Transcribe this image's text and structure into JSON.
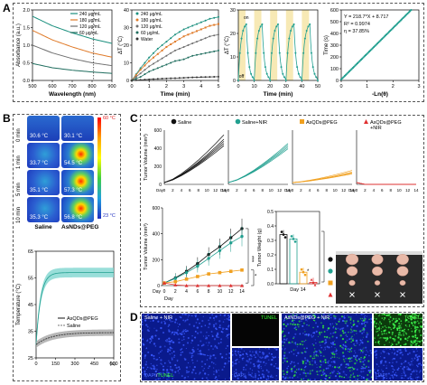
{
  "panels": {
    "A": "A",
    "B": "B",
    "C": "C",
    "D": "D"
  },
  "colors": {
    "c240": "#1a8f7e",
    "c180": "#e07b2a",
    "c120": "#6e6e6e",
    "c60": "#1f6d5e",
    "water": "#333333",
    "teal": "#22a090",
    "orange": "#f0a020",
    "red": "#e03030",
    "black": "#111111"
  },
  "chart_data": [
    {
      "id": "A1",
      "type": "line",
      "xlabel": "Wavelength (nm)",
      "ylabel": "Absorbance (a.u.)",
      "xlim": [
        500,
        900
      ],
      "ylim": [
        0,
        2.0
      ],
      "xticks": [
        "500",
        "600",
        "700",
        "800",
        "900"
      ],
      "yticks": [
        "0.0",
        "0.5",
        "1.0",
        "1.5",
        "2.0"
      ],
      "legend": [
        "240 μg/mL",
        "180 μg/mL",
        "120 μg/mL",
        "60 μg/mL"
      ],
      "dashed_x": 808,
      "series": [
        {
          "name": "240 μg/mL",
          "x": [
            500,
            600,
            700,
            800,
            900
          ],
          "y": [
            1.82,
            1.55,
            1.35,
            1.18,
            1.05
          ]
        },
        {
          "name": "180 μg/mL",
          "x": [
            500,
            600,
            700,
            800,
            900
          ],
          "y": [
            1.42,
            1.15,
            0.95,
            0.78,
            0.66
          ]
        },
        {
          "name": "120 μg/mL",
          "x": [
            500,
            600,
            700,
            800,
            900
          ],
          "y": [
            1.0,
            0.78,
            0.62,
            0.5,
            0.42
          ]
        },
        {
          "name": "60 μg/mL",
          "x": [
            500,
            600,
            700,
            800,
            900
          ],
          "y": [
            0.48,
            0.36,
            0.29,
            0.24,
            0.2
          ]
        }
      ]
    },
    {
      "id": "A2",
      "type": "line",
      "xlabel": "Time (min)",
      "ylabel": "ΔT (°C)",
      "xlim": [
        0,
        5
      ],
      "ylim": [
        0,
        40
      ],
      "xticks": [
        "0",
        "1",
        "2",
        "3",
        "4",
        "5"
      ],
      "yticks": [
        "0",
        "10",
        "20",
        "30",
        "40"
      ],
      "legend": [
        "240 μg/mL",
        "180 μg/mL",
        "120 μg/mL",
        "60 μg/mL",
        "Water"
      ],
      "series": [
        {
          "name": "240 μg/mL",
          "x": [
            0,
            0.5,
            1,
            1.5,
            2,
            2.5,
            3,
            3.5,
            4,
            4.5,
            5
          ],
          "y": [
            0,
            7,
            13,
            18,
            22,
            26,
            29,
            31,
            33,
            35,
            36
          ]
        },
        {
          "name": "180 μg/mL",
          "x": [
            0,
            0.5,
            1,
            1.5,
            2,
            2.5,
            3,
            3.5,
            4,
            4.5,
            5
          ],
          "y": [
            0,
            6,
            11,
            15,
            19,
            22,
            25,
            27,
            29,
            31,
            32
          ]
        },
        {
          "name": "120 μg/mL",
          "x": [
            0,
            0.5,
            1,
            1.5,
            2,
            2.5,
            3,
            3.5,
            4,
            4.5,
            5
          ],
          "y": [
            0,
            4,
            8,
            11,
            14,
            17,
            19,
            21,
            23,
            25,
            26
          ]
        },
        {
          "name": "60 μg/mL",
          "x": [
            0,
            0.5,
            1,
            1.5,
            2,
            2.5,
            3,
            3.5,
            4,
            4.5,
            5
          ],
          "y": [
            0,
            2,
            5,
            7,
            9,
            11,
            12,
            14,
            15,
            16,
            17
          ]
        },
        {
          "name": "Water",
          "x": [
            0,
            0.5,
            1,
            1.5,
            2,
            2.5,
            3,
            3.5,
            4,
            4.5,
            5
          ],
          "y": [
            0,
            0.3,
            0.6,
            0.9,
            1.1,
            1.3,
            1.5,
            1.7,
            1.9,
            2,
            2.1
          ]
        }
      ]
    },
    {
      "id": "A3",
      "type": "line",
      "xlabel": "Time (min)",
      "ylabel": "ΔT (°C)",
      "xlim": [
        0,
        50
      ],
      "ylim": [
        0,
        30
      ],
      "xticks": [
        "0",
        "10",
        "20",
        "30",
        "40",
        "50"
      ],
      "yticks": [
        "0",
        "10",
        "20",
        "30"
      ],
      "annotations": [
        "on",
        "off"
      ],
      "cycles": 5
    },
    {
      "id": "A4",
      "type": "scatter",
      "xlabel": "-Ln(θ)",
      "ylabel": "Time (s)",
      "xlim": [
        0,
        3
      ],
      "ylim": [
        0,
        600
      ],
      "xticks": [
        "0",
        "1",
        "2",
        "3"
      ],
      "yticks": [
        "0",
        "100",
        "200",
        "300",
        "400",
        "500",
        "600"
      ],
      "annotations": [
        "Y = 218.7*X + 8.717",
        "R² = 0.9974",
        "η = 37.85%"
      ],
      "fit": {
        "slope": 218.7,
        "intercept": 8.717
      }
    },
    {
      "id": "B2",
      "type": "line",
      "xlabel": "(s)",
      "ylabel": "Temperature (°C)",
      "xlim": [
        0,
        600
      ],
      "ylim": [
        25,
        65
      ],
      "xticks": [
        "0",
        "150",
        "300",
        "450",
        "600"
      ],
      "yticks": [
        "25",
        "35",
        "45",
        "55",
        "65"
      ],
      "legend": [
        "AsQDs@PEG",
        "Saline"
      ]
    },
    {
      "id": "C1",
      "type": "line",
      "ylabel": "Tumor Volume (mm³)",
      "ylim": [
        0,
        600
      ],
      "yticks": [
        "0",
        "200",
        "400",
        "600"
      ],
      "xticks": [
        "Day",
        "0",
        "2",
        "4",
        "6",
        "8",
        "10",
        "12",
        "14"
      ],
      "groups": [
        "Saline",
        "Saline+NIR",
        "AsQDs@PEG",
        "AsQDs@PEG\n+NIR"
      ]
    },
    {
      "id": "C2",
      "type": "line",
      "xlabel": "Day",
      "ylabel": "Tumor Volume (mm³)",
      "ylim": [
        0,
        600
      ],
      "yticks": [
        "0",
        "200",
        "400",
        "600"
      ],
      "xticks": [
        "Day",
        "0",
        "2",
        "4",
        "6",
        "8",
        "10",
        "12",
        "14"
      ],
      "stars": [
        "***",
        "*"
      ],
      "series": [
        {
          "name": "Saline",
          "x": [
            0,
            2,
            4,
            6,
            8,
            10,
            12,
            14
          ],
          "y": [
            20,
            60,
            110,
            170,
            240,
            300,
            370,
            440
          ]
        },
        {
          "name": "Saline+NIR",
          "x": [
            0,
            2,
            4,
            6,
            8,
            10,
            12,
            14
          ],
          "y": [
            20,
            55,
            100,
            150,
            210,
            270,
            330,
            380
          ]
        },
        {
          "name": "AsQDs@PEG",
          "x": [
            0,
            2,
            4,
            6,
            8,
            10,
            12,
            14
          ],
          "y": [
            20,
            30,
            50,
            70,
            90,
            100,
            110,
            120
          ]
        },
        {
          "name": "AsQDs@PEG+NIR",
          "x": [
            0,
            2,
            4,
            6,
            8,
            10,
            12,
            14
          ],
          "y": [
            20,
            5,
            0,
            0,
            0,
            0,
            0,
            0
          ]
        }
      ]
    },
    {
      "id": "C3",
      "type": "bar",
      "xlabel": "Day 14",
      "ylabel": "Tumor Weight (g)",
      "ylim": [
        0,
        0.5
      ],
      "yticks": [
        "0.0",
        "0.1",
        "0.2",
        "0.3",
        "0.4",
        "0.5"
      ],
      "stars": [
        "***",
        "*"
      ],
      "values": [
        0.34,
        0.31,
        0.08,
        0.01
      ]
    }
  ],
  "panelB": {
    "rows": [
      "0 min",
      "1 min",
      "5 min",
      "10 min"
    ],
    "cols": [
      "Saline",
      "AsNDs@PEG"
    ],
    "temps": [
      [
        "30.6 °C",
        "30.1 °C"
      ],
      [
        "33.7 °C",
        "54.5 °C"
      ],
      [
        "35.1 °C",
        "57.3 °C"
      ],
      [
        "35.3 °C",
        "56.8 °C"
      ]
    ],
    "scale_max": "60 °C",
    "scale_min": "23 °C"
  },
  "panelD": {
    "left_title": "Saline + NIR",
    "left_tunel": "TUNEL",
    "right_title": "AsNDs@PEG + NIR",
    "right_tunel": "TUNEL",
    "dapi": "DAPI",
    "merge_a": "DAPI",
    "merge_b": "/",
    "merge_c": "TUNEL"
  },
  "A3_labels": {
    "on": "on",
    "off": "off"
  }
}
